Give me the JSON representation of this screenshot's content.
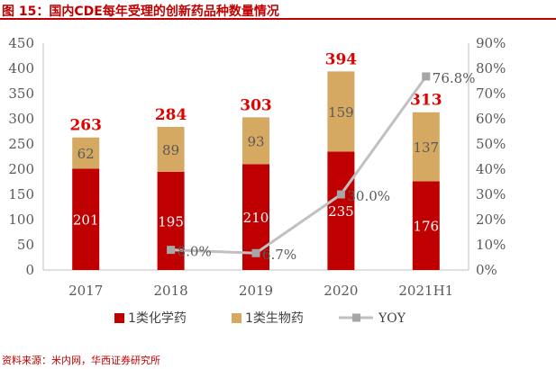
{
  "figure_title": "图 15：国内CDE每年受理的创新药品种数量情况",
  "source": "资料来源：米内网，华西证券研究所",
  "colors": {
    "chemical": "#c00000",
    "biological": "#d6a962",
    "yoy": "#c0c0c0",
    "total_label": "#e00000"
  },
  "chart_data": {
    "type": "bar",
    "stacked": true,
    "categories": [
      "2017",
      "2018",
      "2019",
      "2020",
      "2021H1"
    ],
    "series": [
      {
        "name": "1类化学药",
        "values": [
          201,
          195,
          210,
          235,
          176
        ]
      },
      {
        "name": "1类生物药",
        "values": [
          62,
          89,
          93,
          159,
          137
        ]
      }
    ],
    "totals": [
      263,
      284,
      303,
      394,
      313
    ],
    "line_series": {
      "name": "YOY",
      "x_start_index": 1,
      "values": [
        8.0,
        6.7,
        30.0,
        76.8
      ],
      "labels": [
        "8.0%",
        "6.7%",
        "30.0%",
        "76.8%"
      ]
    },
    "ylim": [
      0,
      450
    ],
    "y_ticks": [
      "0",
      "50",
      "100",
      "150",
      "200",
      "250",
      "300",
      "350",
      "400",
      "450"
    ],
    "y2lim": [
      0,
      90
    ],
    "y2_ticks": [
      "0%",
      "10%",
      "20%",
      "30%",
      "40%",
      "50%",
      "60%",
      "70%",
      "80%",
      "90%"
    ],
    "legend_position": "bottom",
    "grid": false
  }
}
